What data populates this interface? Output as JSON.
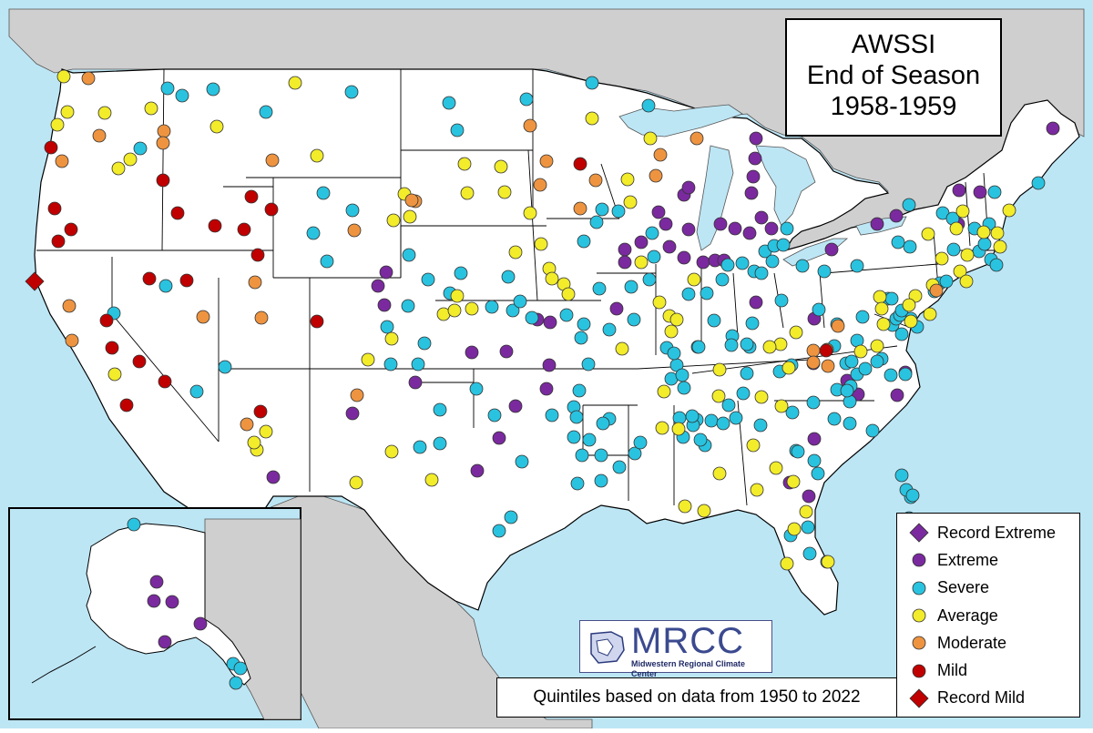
{
  "title": {
    "line1": "AWSSI",
    "line2": "End of Season",
    "line3": "1958-1959"
  },
  "legend": {
    "items": [
      {
        "label": "Record Extreme",
        "shape": "diamond",
        "color": "#7a2a9e"
      },
      {
        "label": "Extreme",
        "shape": "circle",
        "color": "#7a2a9e"
      },
      {
        "label": "Severe",
        "shape": "circle",
        "color": "#29c3e0"
      },
      {
        "label": "Average",
        "shape": "circle",
        "color": "#f2ec2a"
      },
      {
        "label": "Moderate",
        "shape": "circle",
        "color": "#ee9440"
      },
      {
        "label": "Mild",
        "shape": "circle",
        "color": "#c00000"
      },
      {
        "label": "Record Mild",
        "shape": "diamond",
        "color": "#c00000"
      }
    ]
  },
  "footnote": "Quintiles based on data from 1950 to 2022",
  "logo": {
    "text": "MRCC",
    "subtitle": "Midwestern Regional Climate Center"
  },
  "colors": {
    "ocean": "#bde6f5",
    "land_outside": "#cfcfcf",
    "land_us": "#ffffff",
    "border": "#000000"
  },
  "stations": {
    "record_extreme": [],
    "extreme": [
      [
        1156,
        141
      ],
      [
        830,
        152
      ],
      [
        827,
        194
      ],
      [
        825,
        212
      ],
      [
        1053,
        209
      ],
      [
        1076,
        211
      ],
      [
        1052,
        246
      ],
      [
        829,
        174
      ],
      [
        751,
        214
      ],
      [
        756,
        206
      ],
      [
        723,
        233
      ],
      [
        731,
        246
      ],
      [
        756,
        252
      ],
      [
        791,
        246
      ],
      [
        807,
        251
      ],
      [
        823,
        256
      ],
      [
        836,
        239
      ],
      [
        847,
        251
      ],
      [
        984,
        237
      ],
      [
        963,
        246
      ],
      [
        913,
        274
      ],
      [
        704,
        266
      ],
      [
        686,
        274
      ],
      [
        686,
        288
      ],
      [
        735,
        271
      ],
      [
        751,
        283
      ],
      [
        772,
        288
      ],
      [
        785,
        286
      ],
      [
        795,
        286
      ],
      [
        424,
        299
      ],
      [
        415,
        314
      ],
      [
        422,
        335
      ],
      [
        590,
        351
      ],
      [
        604,
        354
      ],
      [
        518,
        387
      ],
      [
        556,
        386
      ],
      [
        603,
        401
      ],
      [
        456,
        420
      ],
      [
        600,
        427
      ],
      [
        566,
        446
      ],
      [
        387,
        454
      ],
      [
        548,
        481
      ],
      [
        524,
        517
      ],
      [
        300,
        524
      ],
      [
        677,
        339
      ],
      [
        830,
        332
      ],
      [
        894,
        350
      ],
      [
        893,
        399
      ],
      [
        930,
        418
      ],
      [
        942,
        433
      ],
      [
        985,
        434
      ],
      [
        994,
        409
      ],
      [
        867,
        530
      ],
      [
        888,
        545
      ],
      [
        894,
        482
      ],
      [
        172,
        639
      ],
      [
        169,
        660
      ],
      [
        189,
        661
      ],
      [
        220,
        685
      ],
      [
        181,
        705
      ]
    ],
    "severe": [
      [
        1140,
        201
      ],
      [
        650,
        91
      ],
      [
        578,
        109
      ],
      [
        712,
        116
      ],
      [
        493,
        113
      ],
      [
        502,
        143
      ],
      [
        184,
        97
      ],
      [
        200,
        105
      ],
      [
        234,
        98
      ],
      [
        386,
        101
      ],
      [
        292,
        123
      ],
      [
        154,
        163
      ],
      [
        355,
        212
      ],
      [
        387,
        231
      ],
      [
        344,
        256
      ],
      [
        359,
        287
      ],
      [
        182,
        314
      ],
      [
        125,
        344
      ],
      [
        247,
        403
      ],
      [
        216,
        430
      ],
      [
        661,
        230
      ],
      [
        655,
        244
      ],
      [
        641,
        265
      ],
      [
        679,
        232
      ],
      [
        716,
        256
      ],
      [
        718,
        282
      ],
      [
        713,
        307
      ],
      [
        693,
        315
      ],
      [
        696,
        351
      ],
      [
        669,
        362
      ],
      [
        658,
        317
      ],
      [
        756,
        323
      ],
      [
        776,
        322
      ],
      [
        793,
        307
      ],
      [
        828,
        298
      ],
      [
        840,
        276
      ],
      [
        850,
        270
      ],
      [
        864,
        251
      ],
      [
        860,
        269
      ],
      [
        848,
        287
      ],
      [
        815,
        289
      ],
      [
        836,
        300
      ],
      [
        858,
        330
      ],
      [
        881,
        292
      ],
      [
        905,
        298
      ],
      [
        941,
        292
      ],
      [
        899,
        340
      ],
      [
        919,
        356
      ],
      [
        947,
        348
      ],
      [
        975,
        328
      ],
      [
        1000,
        350
      ],
      [
        1007,
        359
      ],
      [
        980,
        357
      ],
      [
        990,
        367
      ],
      [
        1026,
        320
      ],
      [
        1032,
        311
      ],
      [
        1039,
        309
      ],
      [
        998,
        225
      ],
      [
        1035,
        234
      ],
      [
        986,
        266
      ],
      [
        999,
        271
      ],
      [
        1075,
        276
      ],
      [
        1046,
        240
      ],
      [
        1070,
        251
      ],
      [
        1086,
        246
      ],
      [
        1081,
        268
      ],
      [
        1088,
        285
      ],
      [
        1094,
        291
      ],
      [
        1092,
        211
      ],
      [
        1047,
        274
      ],
      [
        941,
        374
      ],
      [
        916,
        380
      ],
      [
        929,
        399
      ],
      [
        968,
        394
      ],
      [
        919,
        428
      ],
      [
        933,
        441
      ],
      [
        916,
        460
      ],
      [
        933,
        465
      ],
      [
        958,
        473
      ],
      [
        893,
        442
      ],
      [
        870,
        453
      ],
      [
        874,
        495
      ],
      [
        876,
        496
      ],
      [
        894,
        506
      ],
      [
        898,
        520
      ],
      [
        934,
        424
      ],
      [
        941,
        411
      ],
      [
        887,
        579
      ],
      [
        868,
        588
      ],
      [
        889,
        608
      ],
      [
        908,
        617
      ],
      [
        990,
        522
      ],
      [
        1000,
        546
      ],
      [
        998,
        569
      ],
      [
        995,
        538
      ],
      [
        1002,
        544
      ],
      [
        449,
        280
      ],
      [
        470,
        307
      ],
      [
        506,
        300
      ],
      [
        494,
        322
      ],
      [
        540,
        337
      ],
      [
        563,
        341
      ],
      [
        584,
        349
      ],
      [
        622,
        346
      ],
      [
        558,
        304
      ],
      [
        571,
        331
      ],
      [
        448,
        336
      ],
      [
        425,
        359
      ],
      [
        429,
        400
      ],
      [
        466,
        377
      ],
      [
        459,
        400
      ],
      [
        483,
        450
      ],
      [
        483,
        487
      ],
      [
        461,
        491
      ],
      [
        523,
        427
      ],
      [
        573,
        507
      ],
      [
        548,
        583
      ],
      [
        561,
        568
      ],
      [
        636,
        429
      ],
      [
        630,
        447
      ],
      [
        669,
        460
      ],
      [
        647,
        483
      ],
      [
        660,
        500
      ],
      [
        680,
        513
      ],
      [
        660,
        528
      ],
      [
        639,
        500
      ],
      [
        634,
        531
      ],
      [
        697,
        498
      ],
      [
        703,
        486
      ],
      [
        743,
        401
      ],
      [
        737,
        416
      ],
      [
        751,
        426
      ],
      [
        765,
        461
      ],
      [
        781,
        462
      ],
      [
        800,
        445
      ],
      [
        774,
        489
      ],
      [
        766,
        381
      ],
      [
        784,
        352
      ],
      [
        826,
        355
      ],
      [
        823,
        381
      ],
      [
        767,
        381
      ],
      [
        638,
        371
      ],
      [
        646,
        400
      ],
      [
        732,
        382
      ],
      [
        740,
        388
      ],
      [
        749,
        412
      ],
      [
        804,
        369
      ],
      [
        803,
        379
      ],
      [
        820,
        378
      ],
      [
        641,
        356
      ],
      [
        147,
        576
      ],
      [
        256,
        729
      ],
      [
        259,
        750
      ],
      [
        264,
        734
      ],
      [
        799,
        291
      ],
      [
        820,
        410
      ],
      [
        869,
        401
      ],
      [
        935,
        397
      ],
      [
        930,
        429
      ],
      [
        963,
        397
      ],
      [
        950,
        405
      ],
      [
        994,
        411
      ],
      [
        978,
        412
      ],
      [
        984,
        350
      ],
      [
        988,
        346
      ],
      [
        990,
        341
      ],
      [
        979,
        328
      ],
      [
        856,
        408
      ],
      [
        808,
        459
      ],
      [
        761,
        467
      ],
      [
        760,
        457
      ],
      [
        794,
        465
      ],
      [
        835,
        467
      ],
      [
        816,
        432
      ],
      [
        769,
        483
      ],
      [
        746,
        459
      ],
      [
        750,
        480
      ],
      [
        630,
        480
      ],
      [
        633,
        458
      ],
      [
        662,
        465
      ],
      [
        606,
        456
      ],
      [
        543,
        456
      ]
    ],
    "average": [
      [
        70,
        84
      ],
      [
        74,
        123
      ],
      [
        63,
        137
      ],
      [
        115,
        124
      ],
      [
        130,
        185
      ],
      [
        143,
        175
      ],
      [
        166,
        119
      ],
      [
        238,
        139
      ],
      [
        324,
        91
      ],
      [
        348,
        171
      ],
      [
        444,
        213
      ],
      [
        432,
        242
      ],
      [
        450,
        238
      ],
      [
        510,
        180
      ],
      [
        550,
        183
      ],
      [
        513,
        212
      ],
      [
        554,
        211
      ],
      [
        582,
        234
      ],
      [
        594,
        268
      ],
      [
        603,
        295
      ],
      [
        566,
        277
      ],
      [
        606,
        306
      ],
      [
        619,
        312
      ],
      [
        624,
        323
      ],
      [
        502,
        325
      ],
      [
        487,
        345
      ],
      [
        499,
        341
      ],
      [
        518,
        339
      ],
      [
        430,
        372
      ],
      [
        404,
        395
      ],
      [
        430,
        496
      ],
      [
        391,
        530
      ],
      [
        474,
        527
      ],
      [
        650,
        130
      ],
      [
        714,
        152
      ],
      [
        689,
        197
      ],
      [
        692,
        222
      ],
      [
        704,
        288
      ],
      [
        724,
        332
      ],
      [
        735,
        347
      ],
      [
        743,
        351
      ],
      [
        737,
        364
      ],
      [
        683,
        383
      ],
      [
        790,
        406
      ],
      [
        789,
        435
      ],
      [
        836,
        436
      ],
      [
        858,
        446
      ],
      [
        866,
        404
      ],
      [
        857,
        378
      ],
      [
        845,
        381
      ],
      [
        874,
        365
      ],
      [
        963,
        380
      ],
      [
        970,
        356
      ],
      [
        1005,
        325
      ],
      [
        998,
        335
      ],
      [
        1021,
        345
      ],
      [
        1024,
        313
      ],
      [
        1054,
        298
      ],
      [
        1062,
        280
      ],
      [
        1080,
        255
      ],
      [
        1095,
        256
      ],
      [
        1098,
        271
      ],
      [
        1108,
        231
      ],
      [
        1057,
        232
      ],
      [
        1050,
        251
      ],
      [
        1019,
        257
      ],
      [
        1034,
        284
      ],
      [
        1061,
        309
      ],
      [
        1000,
        353
      ],
      [
        966,
        326
      ],
      [
        968,
        339
      ],
      [
        945,
        386
      ],
      [
        727,
        470
      ],
      [
        745,
        471
      ],
      [
        790,
        520
      ],
      [
        827,
        489
      ],
      [
        831,
        538
      ],
      [
        852,
        514
      ],
      [
        885,
        562
      ],
      [
        872,
        581
      ],
      [
        909,
        617
      ],
      [
        864,
        619
      ],
      [
        871,
        529
      ],
      [
        752,
        556
      ],
      [
        773,
        561
      ],
      [
        126,
        411
      ],
      [
        282,
        494
      ],
      [
        292,
        474
      ],
      [
        279,
        486
      ],
      [
        762,
        307
      ],
      [
        729,
        430
      ]
    ],
    "moderate": [
      [
        97,
        86
      ],
      [
        109,
        149
      ],
      [
        68,
        177
      ],
      [
        180,
        144
      ],
      [
        179,
        157
      ],
      [
        299,
        176
      ],
      [
        389,
        253
      ],
      [
        456,
        221
      ],
      [
        452,
        220
      ],
      [
        582,
        138
      ],
      [
        600,
        177
      ],
      [
        593,
        203
      ],
      [
        637,
        229
      ],
      [
        654,
        198
      ],
      [
        720,
        193
      ],
      [
        725,
        170
      ],
      [
        765,
        152
      ],
      [
        280,
        310
      ],
      [
        287,
        349
      ],
      [
        223,
        348
      ],
      [
        79,
        374
      ],
      [
        76,
        336
      ],
      [
        392,
        434
      ],
      [
        271,
        466
      ],
      [
        920,
        358
      ],
      [
        893,
        385
      ],
      [
        908,
        384
      ],
      [
        893,
        398
      ],
      [
        909,
        402
      ],
      [
        1028,
        319
      ]
    ],
    "mild": [
      [
        56,
        162
      ],
      [
        60,
        229
      ],
      [
        78,
        252
      ],
      [
        64,
        265
      ],
      [
        179,
        198
      ],
      [
        195,
        234
      ],
      [
        236,
        248
      ],
      [
        268,
        252
      ],
      [
        276,
        216
      ],
      [
        298,
        230
      ],
      [
        283,
        280
      ],
      [
        164,
        306
      ],
      [
        205,
        308
      ],
      [
        117,
        352
      ],
      [
        123,
        382
      ],
      [
        153,
        397
      ],
      [
        181,
        419
      ],
      [
        139,
        445
      ],
      [
        348,
        353
      ],
      [
        286,
        452
      ],
      [
        637,
        180
      ],
      [
        907,
        385
      ]
    ],
    "record_mild": [
      [
        38,
        309
      ]
    ]
  }
}
